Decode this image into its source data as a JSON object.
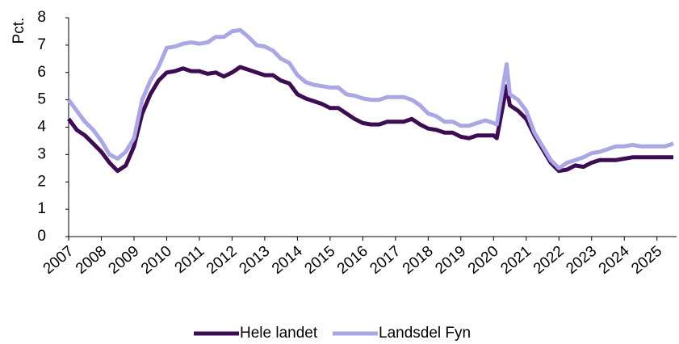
{
  "chart_data": {
    "type": "line",
    "ylabel": "Pct.",
    "x": [
      2007,
      2007.25,
      2007.5,
      2007.75,
      2008,
      2008.25,
      2008.5,
      2008.75,
      2009,
      2009.25,
      2009.5,
      2009.75,
      2010,
      2010.25,
      2010.5,
      2010.75,
      2011,
      2011.25,
      2011.5,
      2011.75,
      2012,
      2012.25,
      2012.5,
      2012.75,
      2013,
      2013.25,
      2013.5,
      2013.75,
      2014,
      2014.25,
      2014.5,
      2014.75,
      2015,
      2015.25,
      2015.5,
      2015.75,
      2016,
      2016.25,
      2016.5,
      2016.75,
      2017,
      2017.25,
      2017.5,
      2017.75,
      2018,
      2018.25,
      2018.5,
      2018.75,
      2019,
      2019.25,
      2019.5,
      2019.75,
      2020,
      2020.1,
      2020.4,
      2020.5,
      2020.75,
      2021,
      2021.25,
      2021.5,
      2021.75,
      2022,
      2022.25,
      2022.5,
      2022.75,
      2023,
      2023.25,
      2023.5,
      2023.75,
      2024,
      2024.25,
      2024.5,
      2024.75,
      2025,
      2025.25,
      2025.5
    ],
    "series": [
      {
        "name": "Hele landet",
        "color": "#3d0c55",
        "values": [
          4.3,
          3.9,
          3.7,
          3.4,
          3.1,
          2.7,
          2.4,
          2.6,
          3.3,
          4.5,
          5.2,
          5.7,
          6.0,
          6.05,
          6.15,
          6.05,
          6.05,
          5.95,
          6.0,
          5.85,
          6.0,
          6.2,
          6.1,
          6.0,
          5.9,
          5.9,
          5.7,
          5.6,
          5.2,
          5.05,
          4.95,
          4.85,
          4.7,
          4.7,
          4.5,
          4.3,
          4.15,
          4.1,
          4.1,
          4.2,
          4.2,
          4.2,
          4.3,
          4.1,
          3.95,
          3.9,
          3.8,
          3.8,
          3.65,
          3.6,
          3.7,
          3.7,
          3.7,
          3.6,
          5.5,
          4.8,
          4.6,
          4.3,
          3.7,
          3.2,
          2.7,
          2.4,
          2.45,
          2.6,
          2.55,
          2.7,
          2.8,
          2.8,
          2.8,
          2.85,
          2.9,
          2.9,
          2.9,
          2.9,
          2.9,
          2.9
        ]
      },
      {
        "name": "Landsdel Fyn",
        "color": "#a9a7e8",
        "values": [
          5.0,
          4.6,
          4.2,
          3.9,
          3.5,
          3.0,
          2.85,
          3.1,
          3.6,
          5.0,
          5.7,
          6.2,
          6.9,
          6.95,
          7.05,
          7.1,
          7.05,
          7.1,
          7.3,
          7.3,
          7.5,
          7.55,
          7.3,
          7.0,
          6.95,
          6.8,
          6.5,
          6.35,
          5.9,
          5.65,
          5.55,
          5.5,
          5.45,
          5.45,
          5.2,
          5.15,
          5.05,
          5.0,
          5.0,
          5.1,
          5.1,
          5.1,
          5.0,
          4.8,
          4.5,
          4.4,
          4.2,
          4.2,
          4.05,
          4.05,
          4.15,
          4.25,
          4.15,
          4.1,
          6.3,
          5.2,
          5.0,
          4.6,
          3.8,
          3.3,
          2.8,
          2.5,
          2.7,
          2.8,
          2.9,
          3.05,
          3.1,
          3.2,
          3.3,
          3.3,
          3.35,
          3.3,
          3.3,
          3.3,
          3.3,
          3.4
        ]
      }
    ],
    "xlim": [
      2007,
      2025.6
    ],
    "xticks": [
      2007,
      2008,
      2009,
      2010,
      2011,
      2012,
      2013,
      2014,
      2015,
      2016,
      2017,
      2018,
      2019,
      2020,
      2021,
      2022,
      2023,
      2024,
      2025
    ],
    "ylim": [
      0,
      8
    ],
    "yticks": [
      0,
      1,
      2,
      3,
      4,
      5,
      6,
      7,
      8
    ],
    "legend": "bottom"
  }
}
